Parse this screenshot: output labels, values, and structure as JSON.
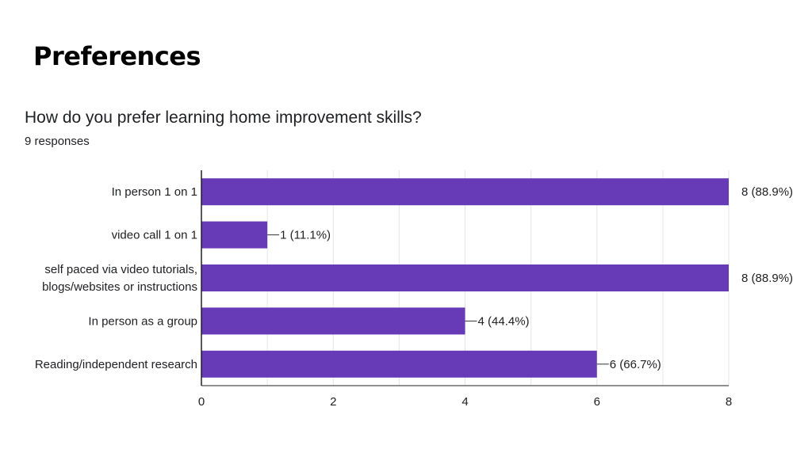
{
  "slide": {
    "title": "Preferences"
  },
  "question": {
    "text": "How do you prefer learning home improvement skills?",
    "responses": "9 responses"
  },
  "colors": {
    "bar": "#673ab7",
    "axis": "#222222",
    "grid": "#e6e6e6",
    "text": "#202124"
  },
  "chart_data": {
    "type": "bar",
    "orientation": "horizontal",
    "title": "How do you prefer learning home improvement skills?",
    "subtitle": "9 responses",
    "categories": [
      [
        "In person 1 on 1"
      ],
      [
        "video call 1 on 1"
      ],
      [
        "self paced via video tutorials,",
        "blogs/websites or instructions"
      ],
      [
        "In person as a group"
      ],
      [
        "Reading/independent research"
      ]
    ],
    "values": [
      8,
      1,
      8,
      4,
      6
    ],
    "data_labels": [
      "8 (88.9%)",
      "1 (11.1%)",
      "8 (88.9%)",
      "4 (44.4%)",
      "6 (66.7%)"
    ],
    "xlim": [
      0,
      8
    ],
    "xticks": [
      0,
      2,
      4,
      6,
      8
    ],
    "grid": true
  }
}
